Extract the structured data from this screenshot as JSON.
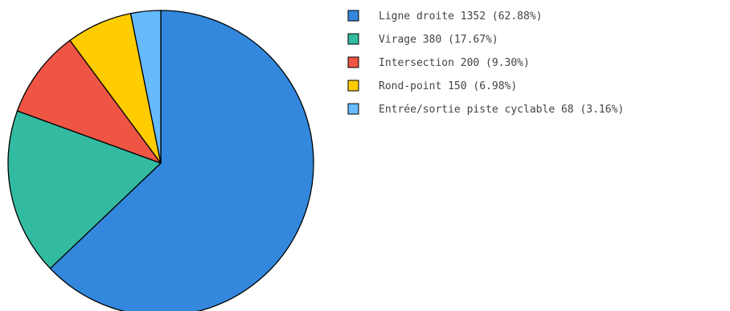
{
  "chart_data": {
    "type": "pie",
    "title": "",
    "legend_position": "right",
    "slices": [
      {
        "label": "Ligne droite",
        "value": 1352,
        "percent": "62.88%",
        "color": "#3388dd",
        "legend_text": "Ligne droite 1352 (62.88%)"
      },
      {
        "label": "Virage",
        "value": 380,
        "percent": "17.67%",
        "color": "#33bba1",
        "legend_text": "Virage 380 (17.67%)"
      },
      {
        "label": "Intersection",
        "value": 200,
        "percent": "9.30%",
        "color": "#ee5544",
        "legend_text": "Intersection 200 (9.30%)"
      },
      {
        "label": "Rond-point",
        "value": 150,
        "percent": "6.98%",
        "color": "#ffcc00",
        "legend_text": "Rond-point 150 (6.98%)"
      },
      {
        "label": "Entrée/sortie piste cyclable",
        "value": 68,
        "percent": "3.16%",
        "color": "#66bbff",
        "legend_text": "Entrée/sortie piste cyclable 68 (3.16%)"
      }
    ]
  }
}
